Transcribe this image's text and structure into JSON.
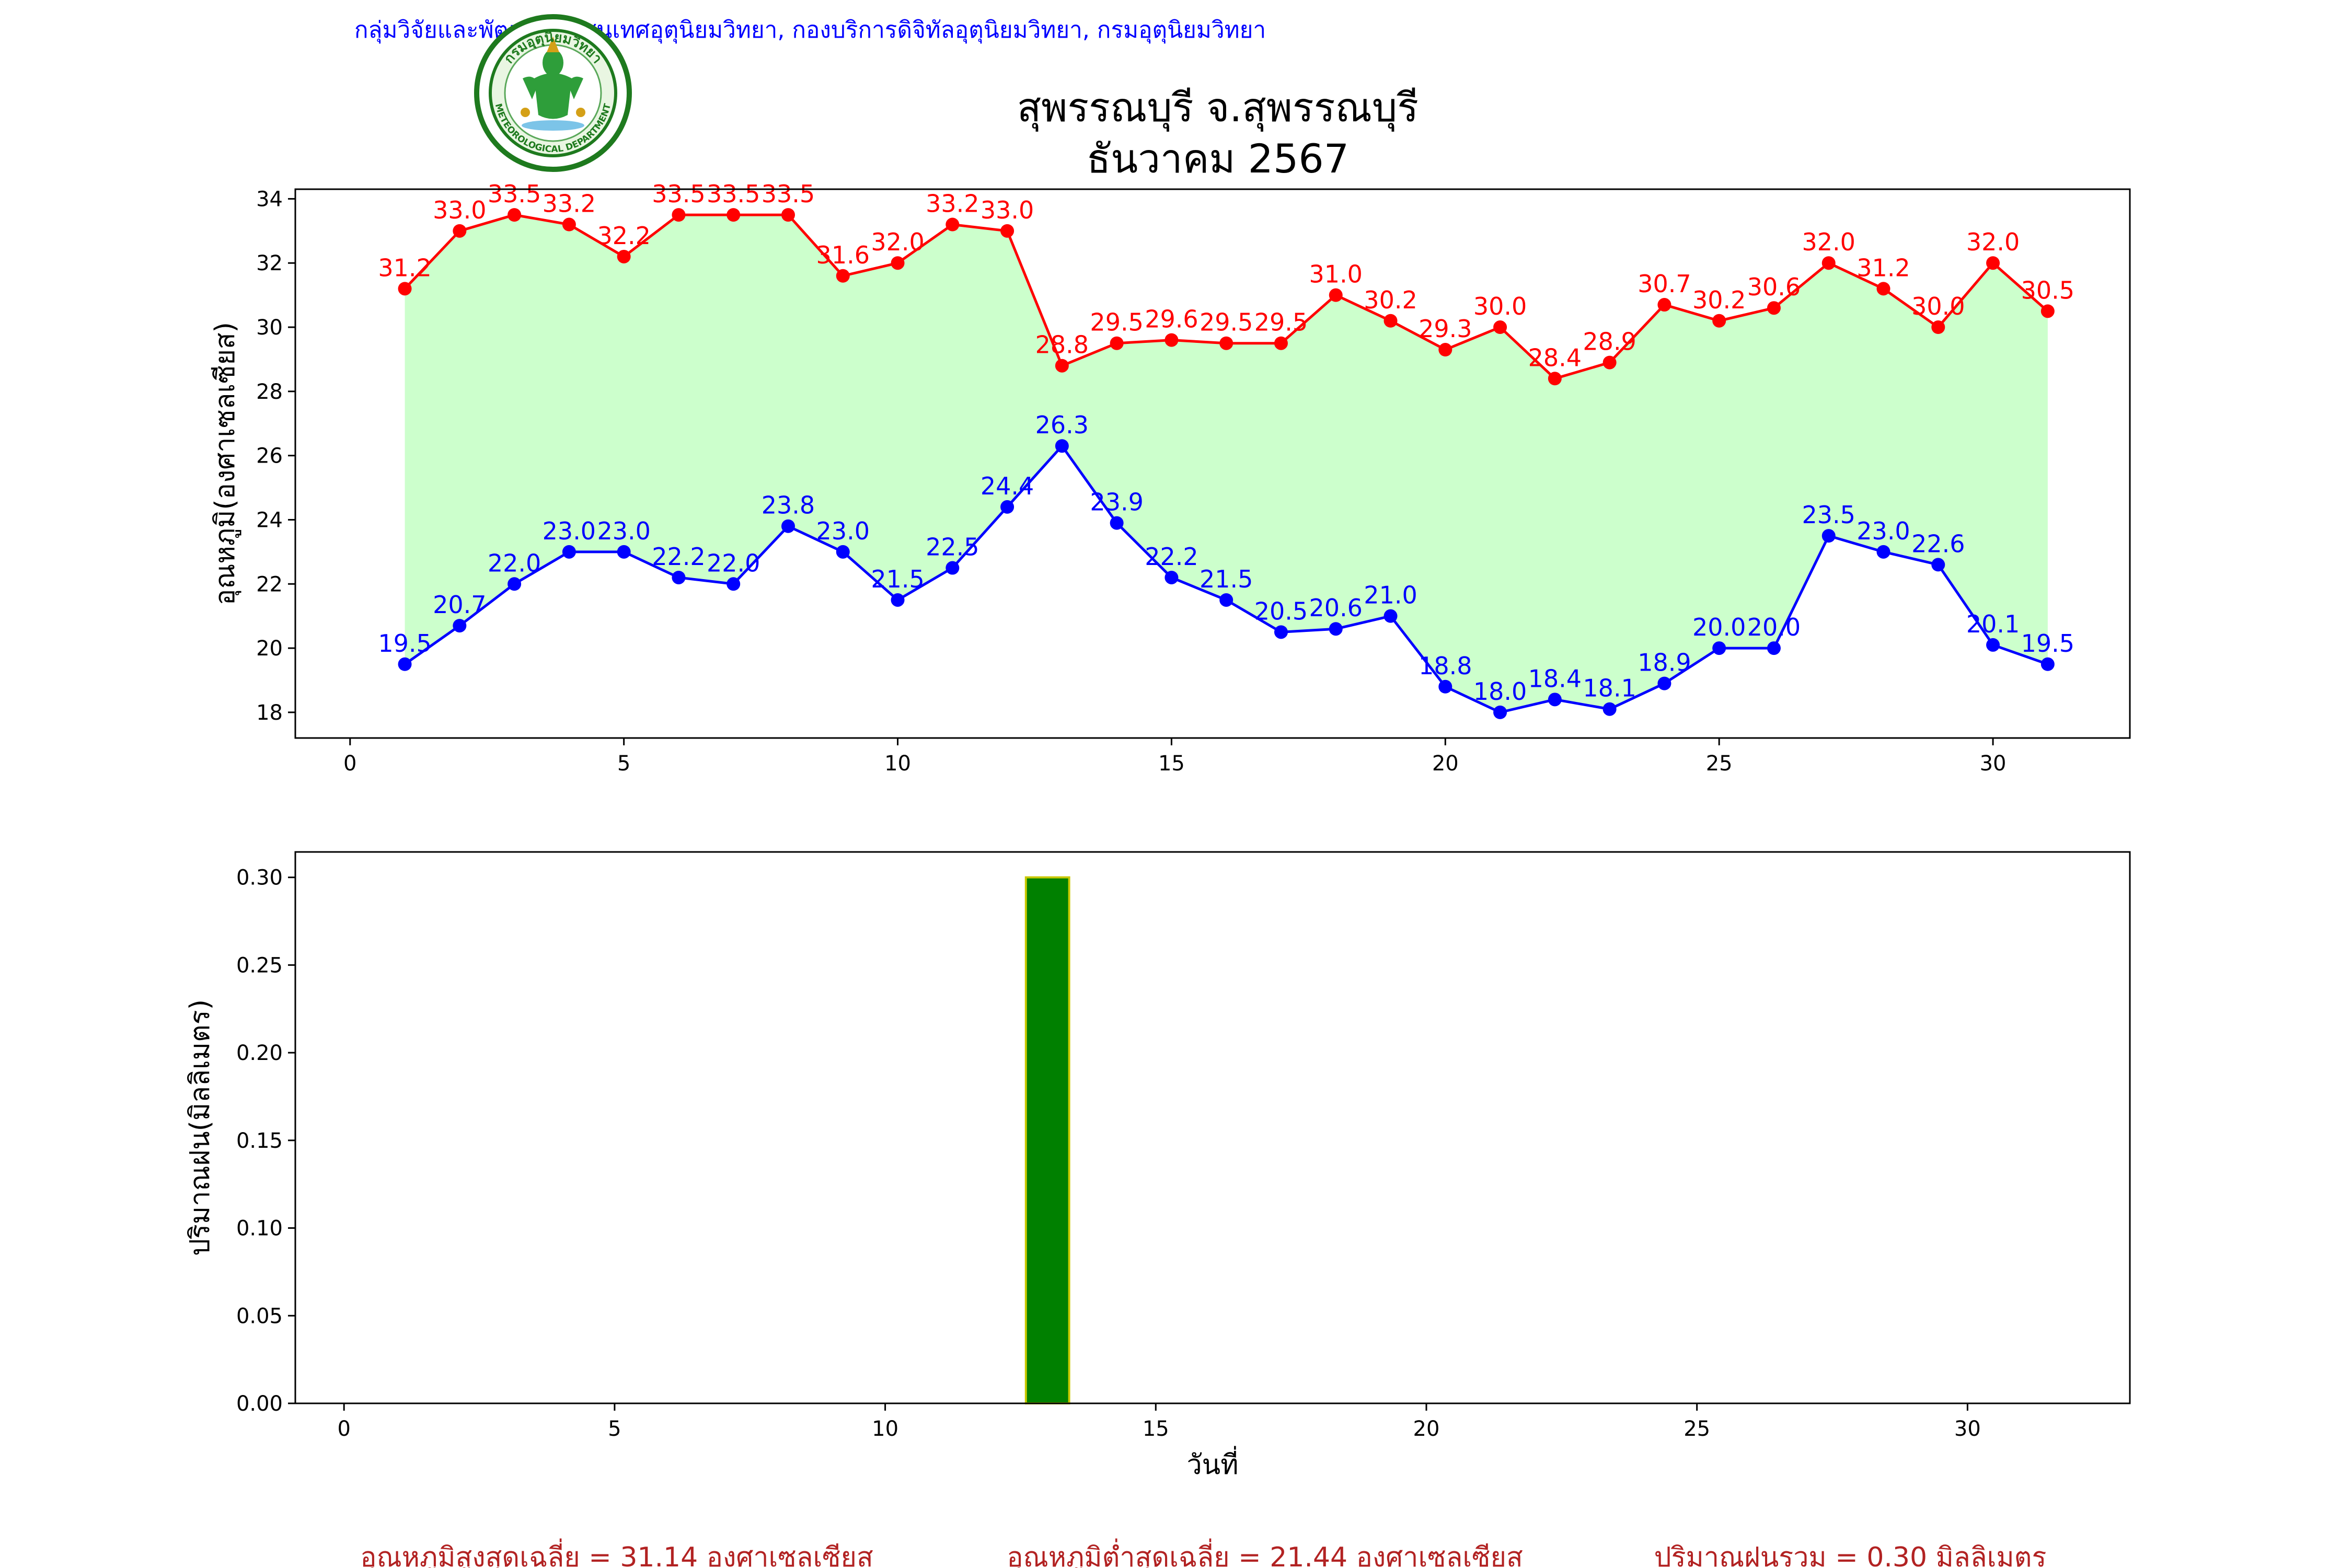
{
  "header": {
    "department_line": "กลุ่มวิจัยและพัฒนาสารสนเทศอุตุนิยมวิทยา, กองบริการดิจิทัลอุตุนิยมวิทยา, กรมอุตุนิยมวิทยา",
    "title_line1": "สุพรรณบุรี จ.สุพรรณบุรี",
    "title_line2": "ธันวาคม 2567",
    "logo_text_top": "กรมอุตุนิยมวิทยา",
    "logo_text_bottom": "METEOROLOGICAL DEPARTMENT"
  },
  "colors": {
    "max_temp": "#ff0000",
    "min_temp": "#0000ff",
    "range_fill": "#ccffcc",
    "rain_bar": "#008000",
    "rain_edge": "#c8c800",
    "summary_text": "#b22222",
    "header_text": "#0000ff"
  },
  "chart_data": [
    {
      "type": "line",
      "ylabel": "อุณหภูมิ(องศาเซลเซียส)",
      "xlabel": "",
      "xlim": [
        -1,
        32.5
      ],
      "ylim": [
        17.2,
        34.3
      ],
      "xticks": [
        0,
        5,
        10,
        15,
        20,
        25,
        30
      ],
      "yticks": [
        18,
        20,
        22,
        24,
        26,
        28,
        30,
        32,
        34
      ],
      "fill_between": true,
      "x": [
        1,
        2,
        3,
        4,
        5,
        6,
        7,
        8,
        9,
        10,
        11,
        12,
        13,
        14,
        15,
        16,
        17,
        18,
        19,
        20,
        21,
        22,
        23,
        24,
        25,
        26,
        27,
        28,
        29,
        30,
        31
      ],
      "series": [
        {
          "key": "max",
          "values": [
            31.2,
            33.0,
            33.5,
            33.2,
            32.2,
            33.5,
            33.5,
            33.5,
            31.6,
            32.0,
            33.2,
            33.0,
            28.8,
            29.5,
            29.6,
            29.5,
            29.5,
            31.0,
            30.2,
            29.3,
            30.0,
            28.4,
            28.9,
            30.7,
            30.2,
            30.6,
            32.0,
            31.2,
            30.0,
            32.0,
            30.5
          ]
        },
        {
          "key": "min",
          "values": [
            19.5,
            20.7,
            22.0,
            23.0,
            23.0,
            22.2,
            22.0,
            23.8,
            23.0,
            21.5,
            22.5,
            24.4,
            26.3,
            23.9,
            22.2,
            21.5,
            20.5,
            20.6,
            21.0,
            18.8,
            18.0,
            18.4,
            18.1,
            18.9,
            20.0,
            20.0,
            23.5,
            23.0,
            22.6,
            20.1,
            19.5
          ]
        }
      ]
    },
    {
      "type": "bar",
      "ylabel": "ปริมาณฝน(มิลลิเมตร)",
      "xlabel": "วันที่",
      "xlim": [
        -0.9,
        33.0
      ],
      "ylim": [
        0,
        0.3145
      ],
      "xticks": [
        0,
        5,
        10,
        15,
        20,
        25,
        30
      ],
      "yticks": [
        "0.00",
        "0.05",
        "0.10",
        "0.15",
        "0.20",
        "0.25",
        "0.30"
      ],
      "x": [
        1,
        2,
        3,
        4,
        5,
        6,
        7,
        8,
        9,
        10,
        11,
        12,
        13,
        14,
        15,
        16,
        17,
        18,
        19,
        20,
        21,
        22,
        23,
        24,
        25,
        26,
        27,
        28,
        29,
        30,
        31
      ],
      "values": [
        0,
        0,
        0,
        0,
        0,
        0,
        0,
        0,
        0,
        0,
        0,
        0,
        0.3,
        0,
        0,
        0,
        0,
        0,
        0,
        0,
        0,
        0,
        0,
        0,
        0,
        0,
        0,
        0,
        0,
        0,
        0
      ]
    }
  ],
  "summary": {
    "avg_max": "อุณหภูมิสูงสุดเฉลี่ย = 31.14 องศาเซลเซียส",
    "avg_min": "อุณหภูมิต่ำสุดเฉลี่ย = 21.44 องศาเซลเซียส",
    "total_rain": "ปริมาณฝนรวม = 0.30 มิลลิเมตร"
  }
}
